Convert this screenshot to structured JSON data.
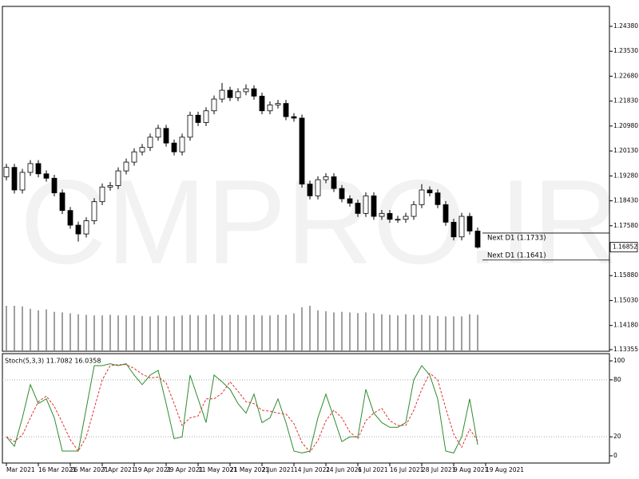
{
  "chart_data": [
    {
      "type": "candlestick",
      "watermark": "CMPRO.IR",
      "xlim": [
        -0.5,
        75.5
      ],
      "xticks": [
        {
          "value": 0,
          "label": "Mar 2021"
        },
        {
          "value": 4,
          "label": "16 Mar 2021"
        },
        {
          "value": 8,
          "label": "26 Mar 2021"
        },
        {
          "value": 12,
          "label": "7 Apr 2021"
        },
        {
          "value": 16,
          "label": "19 Apr 2021"
        },
        {
          "value": 20,
          "label": "29 Apr 2021"
        },
        {
          "value": 24,
          "label": "11 May 2021"
        },
        {
          "value": 28,
          "label": "21 May 2021"
        },
        {
          "value": 32,
          "label": "2 Jun 2021"
        },
        {
          "value": 36,
          "label": "14 Jun 2021"
        },
        {
          "value": 40,
          "label": "24 Jun 2021"
        },
        {
          "value": 44,
          "label": "6 Jul 2021"
        },
        {
          "value": 48,
          "label": "16 Jul 2021"
        },
        {
          "value": 52,
          "label": "28 Jul 2021"
        },
        {
          "value": 56,
          "label": "9 Aug 2021"
        },
        {
          "value": 60,
          "label": "19 Aug 2021"
        }
      ],
      "ylim": [
        1.133,
        1.2506
      ],
      "yticks": [
        {
          "value": 1.2438,
          "label": "1.24380"
        },
        {
          "value": 1.2353,
          "label": "1.23530"
        },
        {
          "value": 1.2268,
          "label": "1.22680"
        },
        {
          "value": 1.2183,
          "label": "1.21830"
        },
        {
          "value": 1.2098,
          "label": "1.20980"
        },
        {
          "value": 1.2013,
          "label": "1.20130"
        },
        {
          "value": 1.1928,
          "label": "1.19280"
        },
        {
          "value": 1.1843,
          "label": "1.18430"
        },
        {
          "value": 1.1758,
          "label": "1.17580"
        },
        {
          "value": 1.1588,
          "label": "1.15880"
        },
        {
          "value": 1.1503,
          "label": "1.15030"
        },
        {
          "value": 1.1418,
          "label": "1.14180"
        },
        1.13355
      ],
      "bull_color": "#ffffff",
      "bear_color": "#000000",
      "volume_color": "#808080",
      "current_price": 1.16852,
      "annotations": [
        {
          "label": "Next D1 (1.1733)",
          "value": 1.1733
        },
        {
          "label": "Next D1 (1.1641)",
          "value": 1.1641
        }
      ],
      "open": [
        1.1925,
        1.1957,
        1.188,
        1.194,
        1.197,
        1.1935,
        1.192,
        1.187,
        1.181,
        1.176,
        1.173,
        1.1775,
        1.184,
        1.189,
        1.1895,
        1.1945,
        1.1975,
        1.201,
        1.2025,
        1.206,
        1.209,
        1.204,
        1.201,
        1.206,
        1.2135,
        1.211,
        1.215,
        1.219,
        1.222,
        1.2195,
        1.2215,
        1.2225,
        1.22,
        1.215,
        1.217,
        1.2175,
        1.213,
        1.2125,
        1.19,
        1.186,
        1.1915,
        1.1925,
        1.1885,
        1.185,
        1.1835,
        1.18,
        1.186,
        1.179,
        1.18,
        1.178,
        1.178,
        1.179,
        1.183,
        1.188,
        1.187,
        1.183,
        1.177,
        1.172,
        1.179,
        1.174
      ],
      "high": [
        1.1969,
        1.1969,
        1.1952,
        1.1982,
        1.1982,
        1.1947,
        1.1932,
        1.1882,
        1.1822,
        1.1772,
        1.1787,
        1.1852,
        1.1902,
        1.1907,
        1.1957,
        1.1987,
        1.2022,
        1.2037,
        1.2072,
        1.2102,
        1.2102,
        1.2052,
        1.2072,
        1.2147,
        1.2147,
        1.2162,
        1.2202,
        1.2245,
        1.2232,
        1.2227,
        1.224,
        1.2237,
        1.2212,
        1.2182,
        1.2187,
        1.2187,
        1.2142,
        1.2137,
        1.1912,
        1.1927,
        1.1937,
        1.1937,
        1.1897,
        1.1862,
        1.1847,
        1.1872,
        1.1872,
        1.1812,
        1.1812,
        1.1792,
        1.1802,
        1.1842,
        1.19,
        1.1892,
        1.1882,
        1.1842,
        1.1782,
        1.1802,
        1.1802,
        1.1752
      ],
      "low": [
        1.1913,
        1.1868,
        1.1868,
        1.1928,
        1.1923,
        1.1908,
        1.1858,
        1.1798,
        1.1748,
        1.1704,
        1.1718,
        1.1763,
        1.1828,
        1.1878,
        1.1883,
        1.1933,
        1.1963,
        1.1998,
        1.2013,
        1.2048,
        1.2028,
        1.1998,
        1.1998,
        1.2048,
        1.2098,
        1.2098,
        1.2138,
        1.2178,
        1.2183,
        1.2183,
        1.2203,
        1.2188,
        1.2138,
        1.2138,
        1.2158,
        1.2118,
        1.2113,
        1.1888,
        1.1848,
        1.1848,
        1.1903,
        1.1873,
        1.1838,
        1.1823,
        1.1788,
        1.1788,
        1.1778,
        1.1778,
        1.1768,
        1.1768,
        1.1768,
        1.1778,
        1.1818,
        1.1858,
        1.1818,
        1.1758,
        1.1708,
        1.1708,
        1.1728,
        1.168
      ],
      "close": [
        1.1957,
        1.188,
        1.194,
        1.197,
        1.1935,
        1.192,
        1.187,
        1.181,
        1.176,
        1.173,
        1.1775,
        1.184,
        1.189,
        1.1895,
        1.1945,
        1.1975,
        1.201,
        1.2025,
        1.206,
        1.209,
        1.204,
        1.201,
        1.206,
        1.2135,
        1.211,
        1.215,
        1.219,
        1.222,
        1.2195,
        1.2215,
        1.2225,
        1.22,
        1.215,
        1.217,
        1.2175,
        1.213,
        1.2125,
        1.19,
        1.186,
        1.1915,
        1.1925,
        1.1885,
        1.185,
        1.1835,
        1.18,
        1.186,
        1.179,
        1.18,
        1.178,
        1.178,
        1.179,
        1.183,
        1.188,
        1.187,
        1.183,
        1.177,
        1.172,
        1.179,
        1.174,
        1.1685
      ],
      "volume": [
        150,
        150,
        148,
        140,
        135,
        138,
        130,
        128,
        125,
        122,
        120,
        118,
        118,
        120,
        118,
        118,
        118,
        116,
        115,
        118,
        116,
        115,
        118,
        120,
        118,
        120,
        122,
        118,
        120,
        120,
        118,
        120,
        118,
        118,
        120,
        120,
        125,
        145,
        150,
        135,
        132,
        128,
        130,
        128,
        126,
        128,
        125,
        122,
        120,
        118,
        122,
        120,
        120,
        118,
        116,
        115,
        115,
        115,
        122,
        120
      ]
    },
    {
      "type": "line",
      "title": "Stoch(5,3,3) 11.7082 16.0358",
      "xlim": [
        -0.5,
        75.5
      ],
      "ylim": [
        -7.6,
        107.6
      ],
      "yticks": [
        0,
        20,
        80,
        100
      ],
      "levels": [
        20,
        80
      ],
      "series": [
        {
          "color": "#2e8b2e",
          "dash": false,
          "values": [
            20,
            10,
            40,
            75,
            55,
            60,
            40,
            5,
            5,
            5,
            50,
            95,
            95,
            97,
            95,
            97,
            85,
            75,
            85,
            90,
            55,
            18,
            20,
            85,
            60,
            35,
            85,
            78,
            70,
            55,
            45,
            65,
            35,
            40,
            60,
            35,
            5,
            3,
            5,
            40,
            65,
            40,
            15,
            20,
            20,
            70,
            45,
            35,
            30,
            30,
            35,
            80,
            95,
            85,
            60,
            5,
            3,
            20,
            60,
            11.7082
          ]
        },
        {
          "color": "#e03030",
          "dash": true,
          "values": [
            20,
            15,
            22,
            40,
            57,
            63,
            52,
            35,
            17,
            5,
            20,
            50,
            80,
            95,
            96,
            96,
            92,
            86,
            82,
            83,
            77,
            55,
            32,
            40,
            42,
            60,
            60,
            66,
            78,
            68,
            57,
            55,
            48,
            47,
            45,
            44,
            34,
            14,
            4,
            16,
            37,
            48,
            40,
            25,
            18,
            37,
            45,
            50,
            37,
            32,
            32,
            48,
            70,
            87,
            80,
            50,
            23,
            9,
            28,
            16.0358
          ]
        }
      ]
    }
  ]
}
